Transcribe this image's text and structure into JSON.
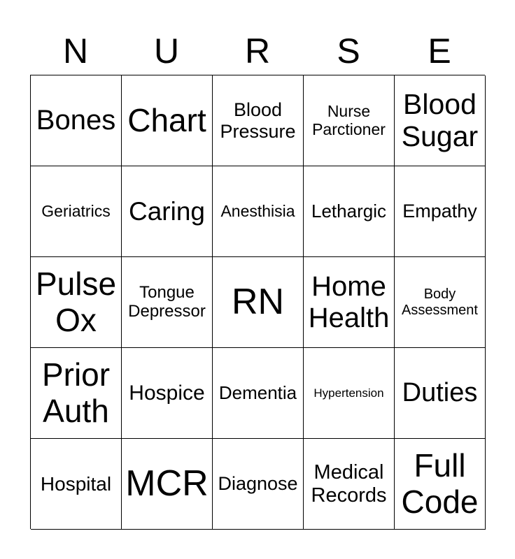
{
  "header": [
    "N",
    "U",
    "R",
    "S",
    "E"
  ],
  "cells": [
    {
      "text": "Bones",
      "size": 40
    },
    {
      "text": "Chart",
      "size": 46
    },
    {
      "text": "Blood\nPressure",
      "size": 27
    },
    {
      "text": "Nurse\nParctioner",
      "size": 23
    },
    {
      "text": "Blood\nSugar",
      "size": 41
    },
    {
      "text": "Geriatrics",
      "size": 23
    },
    {
      "text": "Caring",
      "size": 37
    },
    {
      "text": "Anesthisia",
      "size": 23
    },
    {
      "text": "Lethargic",
      "size": 26
    },
    {
      "text": "Empathy",
      "size": 27
    },
    {
      "text": "Pulse\nOx",
      "size": 46
    },
    {
      "text": "Tongue\nDepressor",
      "size": 24
    },
    {
      "text": "RN",
      "size": 52
    },
    {
      "text": "Home\nHealth",
      "size": 40
    },
    {
      "text": "Body\nAssessment",
      "size": 20
    },
    {
      "text": "Prior\nAuth",
      "size": 46
    },
    {
      "text": "Hospice",
      "size": 30
    },
    {
      "text": "Dementia",
      "size": 26
    },
    {
      "text": "Hypertension",
      "size": 17
    },
    {
      "text": "Duties",
      "size": 38
    },
    {
      "text": "Hospital",
      "size": 28
    },
    {
      "text": "MCR",
      "size": 52
    },
    {
      "text": "Diagnose",
      "size": 27
    },
    {
      "text": "Medical\nRecords",
      "size": 29
    },
    {
      "text": "Full\nCode",
      "size": 46
    }
  ]
}
